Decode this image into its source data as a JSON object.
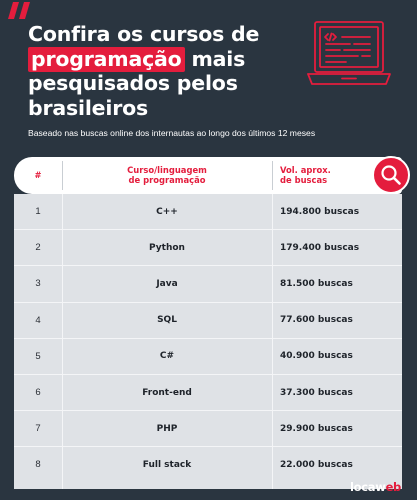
{
  "title": {
    "line1": "Confira os cursos de",
    "highlight": "programação",
    "line2_rest": " mais",
    "line3": "pesquisados pelos",
    "line4": "brasileiros"
  },
  "subtitle": "Baseado nas buscas online dos internautas ao longo dos últimos 12 meses",
  "table": {
    "headers": {
      "num": "#",
      "course_line1": "Curso/linguagem",
      "course_line2": "de programação",
      "vol_line1": "Vol. aprox.",
      "vol_line2": "de buscas"
    },
    "rows": [
      {
        "num": "1",
        "course": "C++",
        "volume": "194.800 buscas"
      },
      {
        "num": "2",
        "course": "Python",
        "volume": "179.400 buscas"
      },
      {
        "num": "3",
        "course": "Java",
        "volume": "81.500 buscas"
      },
      {
        "num": "4",
        "course": "SQL",
        "volume": "77.600 buscas"
      },
      {
        "num": "5",
        "course": "C#",
        "volume": "40.900 buscas"
      },
      {
        "num": "6",
        "course": "Front-end",
        "volume": "37.300 buscas"
      },
      {
        "num": "7",
        "course": "PHP",
        "volume": "29.900 buscas"
      },
      {
        "num": "8",
        "course": "Full stack",
        "volume": "22.000 buscas"
      }
    ]
  },
  "logo": {
    "part1": "locaw",
    "part2": "eb"
  },
  "icons": {
    "quote": "quote-mark-icon",
    "laptop": "laptop-code-icon",
    "search": "search-icon"
  },
  "colors": {
    "background": "#2a3540",
    "accent": "#e41d3d",
    "table_body": "#dfe2e6"
  }
}
